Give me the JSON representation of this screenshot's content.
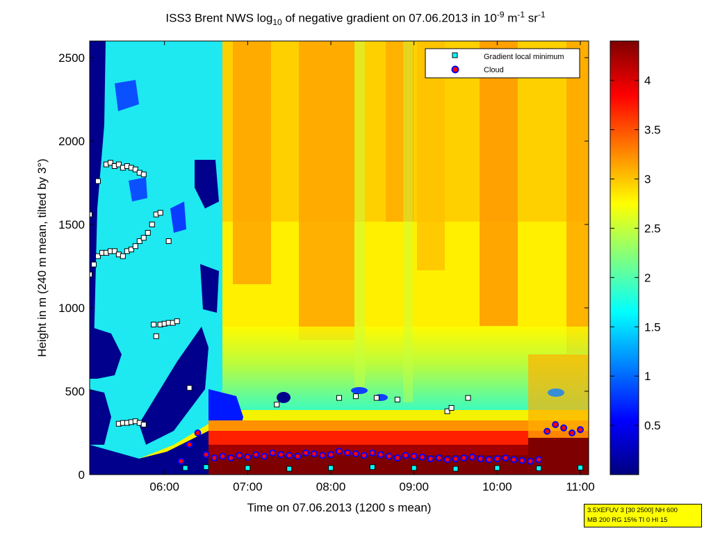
{
  "title": {
    "pre": "ISS3 Brent NWS log",
    "sub": "10",
    "mid": " of negative gradient on 07.06.2013 in 10",
    "sup1": "-9",
    "mid2": " m",
    "sup2": "-1",
    "mid3": " sr",
    "sup3": "-1"
  },
  "info_box": {
    "line1": "3.5XEFUV 3 [30 2500] NH 600",
    "line2": "MB 200 RG 15% TI 0 HI 15"
  },
  "chart_data": {
    "type": "heatmap",
    "xlabel": "Time on 07.06.2013 (1200 s mean)",
    "ylabel": "Height in m (240 m mean, tilted by 3°)",
    "xlim": [
      "05:06",
      "11:06"
    ],
    "ylim": [
      0,
      2600
    ],
    "x_ticks": [
      "06:00",
      "07:00",
      "08:00",
      "09:00",
      "10:00",
      "11:00"
    ],
    "x_tick_hours": [
      6,
      7,
      8,
      9,
      10,
      11
    ],
    "y_ticks": [
      0,
      500,
      1000,
      1500,
      2000,
      2500
    ],
    "colorbar": {
      "range": [
        0,
        4.4
      ],
      "ticks": [
        0.5,
        1,
        1.5,
        2,
        2.5,
        3,
        3.5,
        4
      ],
      "tick_labels": [
        "0.5",
        "1",
        "1.5",
        "2",
        "2.5",
        "3",
        "3.5",
        "4"
      ],
      "colormap": "jet"
    },
    "legend": {
      "position": "top-right",
      "entries": [
        {
          "label": "Gradient local minimum",
          "marker": "square",
          "color": "#00ffff"
        },
        {
          "label": "Cloud",
          "marker": "circle",
          "color": "#ff0000"
        }
      ]
    },
    "gradient_minima_series": [
      {
        "t": [
          5.1,
          5.15,
          5.2,
          5.25,
          5.3,
          5.35,
          5.4,
          5.45,
          5.5,
          5.55,
          5.6,
          5.65,
          5.7,
          5.75,
          5.8,
          5.85,
          5.9
        ],
        "h": [
          1200,
          1260,
          1310,
          1330,
          1330,
          1340,
          1340,
          1320,
          1310,
          1340,
          1350,
          1370,
          1400,
          1420,
          1450,
          1500,
          1560
        ]
      },
      {
        "t": [
          5.3,
          5.35,
          5.4,
          5.45,
          5.5,
          5.55,
          5.6,
          5.65,
          5.7,
          5.75
        ],
        "h": [
          1860,
          1870,
          1850,
          1860,
          1840,
          1850,
          1840,
          1830,
          1810,
          1800
        ]
      },
      {
        "t": [
          5.87,
          5.95,
          6.0,
          6.05,
          6.1,
          6.15
        ],
        "h": [
          900,
          900,
          905,
          910,
          910,
          920
        ]
      },
      {
        "t": [
          5.45,
          5.5,
          5.55,
          5.6,
          5.65,
          5.7,
          5.75
        ],
        "h": [
          305,
          310,
          310,
          315,
          320,
          310,
          300
        ]
      },
      {
        "t": [
          5.05,
          5.1,
          5.2,
          5.9,
          5.95,
          6.05
        ],
        "h": [
          1620,
          1560,
          1760,
          830,
          1570,
          1400
        ]
      },
      {
        "t": [
          6.25,
          6.5,
          7.0,
          7.5,
          8.0,
          8.5,
          9.0,
          9.5,
          10.0,
          10.5,
          11.0
        ],
        "h": [
          40,
          45,
          40,
          35,
          40,
          45,
          40,
          35,
          40,
          38,
          42
        ]
      },
      {
        "t": [
          6.3,
          7.35,
          8.1,
          8.3,
          8.55,
          8.8,
          9.4,
          9.45,
          9.65
        ],
        "h": [
          520,
          420,
          460,
          470,
          460,
          450,
          380,
          400,
          460
        ]
      }
    ],
    "cloud_points": {
      "t": [
        6.2,
        6.3,
        6.4,
        6.5,
        6.6,
        6.7,
        6.8,
        6.9,
        7.0,
        7.1,
        7.2,
        7.3,
        7.4,
        7.5,
        7.6,
        7.7,
        7.8,
        7.9,
        8.0,
        8.1,
        8.2,
        8.3,
        8.4,
        8.5,
        8.6,
        8.7,
        8.8,
        8.9,
        9.0,
        9.1,
        9.2,
        9.3,
        9.4,
        9.5,
        9.6,
        9.7,
        9.8,
        9.9,
        10.0,
        10.1,
        10.2,
        10.3,
        10.4,
        10.5,
        10.6,
        10.7,
        10.8,
        10.9,
        11.0
      ],
      "h": [
        80,
        180,
        250,
        120,
        100,
        110,
        100,
        115,
        105,
        120,
        110,
        130,
        120,
        115,
        110,
        130,
        125,
        115,
        120,
        140,
        130,
        125,
        115,
        130,
        120,
        110,
        100,
        115,
        110,
        105,
        95,
        100,
        90,
        95,
        100,
        105,
        95,
        90,
        95,
        100,
        90,
        85,
        80,
        90,
        260,
        300,
        280,
        250,
        270
      ]
    }
  }
}
